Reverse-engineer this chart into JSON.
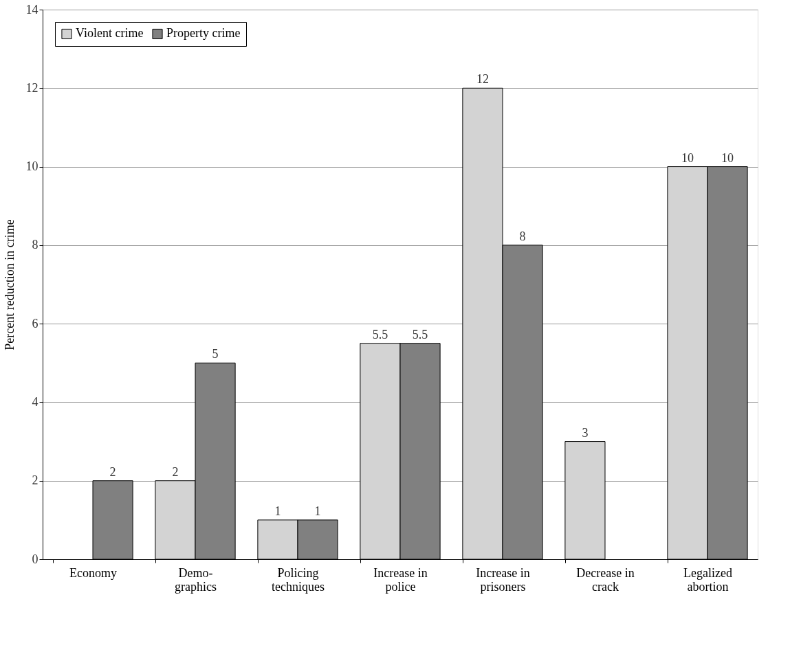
{
  "chart_data": {
    "type": "bar",
    "ylabel": "Percent reduction in crime",
    "categories": [
      "Economy",
      "Demo-\ngraphics",
      "Policing\ntechniques",
      "Increase in\npolice",
      "Increase in\nprisoners",
      "Decrease in\ncrack",
      "Legalized\nabortion"
    ],
    "series": [
      {
        "name": "Violent crime",
        "color": "#d3d3d3",
        "values": [
          null,
          2,
          1,
          5.5,
          12,
          3,
          10
        ]
      },
      {
        "name": "Property crime",
        "color": "#808080",
        "values": [
          2,
          5,
          1,
          5.5,
          8,
          null,
          10
        ]
      }
    ],
    "ylim": [
      0,
      14
    ],
    "yticks": [
      0,
      2,
      4,
      6,
      8,
      10,
      12,
      14
    ],
    "grid": "y",
    "legend": "top left",
    "data_labels": true
  }
}
